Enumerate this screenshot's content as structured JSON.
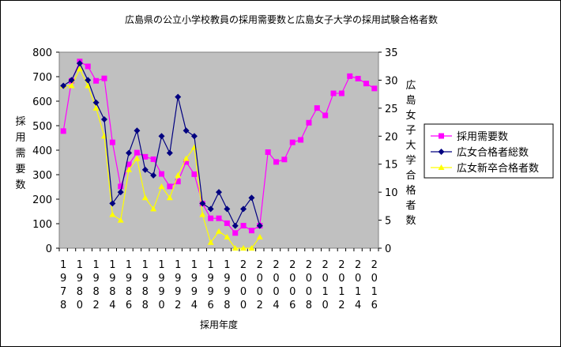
{
  "chart_data": {
    "type": "line",
    "title": "広島県の公立小学校教員の採用需要数と広島女子大学の採用試験合格者数",
    "xlabel": "採用年度",
    "ylabel": "採用需要数",
    "y2label": "広島女子大学合格者数",
    "ylim": [
      0,
      800
    ],
    "y2lim": [
      0,
      35
    ],
    "yticks": [
      "0",
      "100",
      "200",
      "300",
      "400",
      "500",
      "600",
      "700",
      "800"
    ],
    "y2ticks": [
      "0",
      "5",
      "10",
      "15",
      "20",
      "25",
      "30",
      "35"
    ],
    "xrange": [
      1978,
      2016
    ],
    "xticks": [
      "1978",
      "1980",
      "1982",
      "1984",
      "1986",
      "1988",
      "1990",
      "1992",
      "1994",
      "1996",
      "1998",
      "2000",
      "2002",
      "2004",
      "2006",
      "2008",
      "2010",
      "2012",
      "2014",
      "2016"
    ],
    "legend_position": "right",
    "series": [
      {
        "name": "採用需要数",
        "axis": "left",
        "color": "#ff00ff",
        "marker": "square",
        "x": [
          1978,
          1979,
          1980,
          1981,
          1982,
          1983,
          1984,
          1985,
          1986,
          1987,
          1988,
          1989,
          1990,
          1991,
          1992,
          1993,
          1994,
          1995,
          1996,
          1997,
          1998,
          1999,
          2000,
          2001,
          2002,
          2003,
          2004,
          2005,
          2006,
          2007,
          2008,
          2009,
          2010,
          2011,
          2012,
          2013,
          2014,
          2015,
          2016
        ],
        "values": [
          478,
          683,
          762,
          742,
          683,
          693,
          432,
          252,
          342,
          390,
          373,
          363,
          303,
          252,
          272,
          352,
          302,
          182,
          122,
          122,
          102,
          62,
          92,
          72,
          92,
          392,
          352,
          362,
          432,
          442,
          512,
          572,
          542,
          632,
          632,
          702,
          692,
          672,
          652
        ]
      },
      {
        "name": "広女合格者総数",
        "axis": "right",
        "color": "#000080",
        "marker": "diamond",
        "x": [
          1978,
          1979,
          1980,
          1981,
          1982,
          1983,
          1984,
          1985,
          1986,
          1987,
          1988,
          1989,
          1990,
          1991,
          1992,
          1993,
          1994,
          1995,
          1996,
          1997,
          1998,
          1999,
          2000,
          2001,
          2002
        ],
        "values": [
          29,
          30,
          33,
          30,
          26,
          23,
          8,
          10,
          17,
          21,
          14,
          13,
          20,
          17,
          27,
          21,
          20,
          8,
          7,
          10,
          7,
          4,
          7,
          9,
          4
        ]
      },
      {
        "name": "広女新卒合格者数",
        "axis": "right",
        "color": "#ffff00",
        "marker": "triangle",
        "x": [
          1978,
          1979,
          1980,
          1981,
          1982,
          1983,
          1984,
          1985,
          1986,
          1987,
          1988,
          1989,
          1990,
          1991,
          1992,
          1993,
          1994,
          1995,
          1996,
          1997,
          1998,
          1999,
          2000,
          2001,
          2002
        ],
        "values": [
          29,
          29,
          32,
          29,
          25,
          20,
          6,
          5,
          14,
          16,
          9,
          7,
          11,
          9,
          13,
          16,
          18,
          6,
          1,
          3,
          2,
          0,
          0,
          0,
          2
        ]
      }
    ]
  }
}
